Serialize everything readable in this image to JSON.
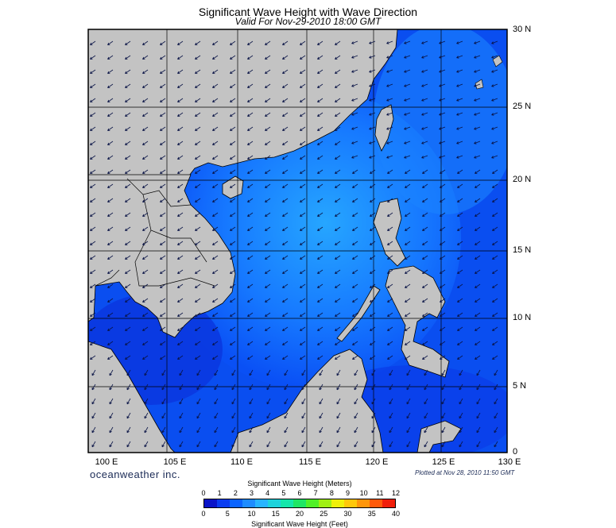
{
  "title": "Significant Wave Height with Wave Direction",
  "subtitle": "Valid For Nov-29-2010 18:00 GMT",
  "latitude_labels": [
    "30 N",
    "25 N",
    "20 N",
    "15 N",
    "10 N",
    "5 N",
    "0"
  ],
  "longitude_labels": [
    "100 E",
    "105 E",
    "110 E",
    "115 E",
    "120 E",
    "125 E",
    "130 E"
  ],
  "brand": "oceanweather inc.",
  "plotted_note": "Plotted at Nov 28, 2010 11:50 GMT",
  "colorbar": {
    "meters_title": "Significant Wave Height (Meters)",
    "feet_title": "Significant Wave Height (Feet)",
    "meters_ticks": [
      "0",
      "1",
      "2",
      "3",
      "4",
      "5",
      "6",
      "7",
      "8",
      "9",
      "10",
      "11",
      "12"
    ],
    "feet_ticks": [
      "0",
      "5",
      "10",
      "15",
      "20",
      "25",
      "30",
      "35",
      "40"
    ],
    "colors": [
      "#0a14c8",
      "#0a3cf0",
      "#0a64ff",
      "#1e8cff",
      "#28b4ff",
      "#1ed2dc",
      "#14e6aa",
      "#1ee664",
      "#50f028",
      "#a0f014",
      "#f0f00a",
      "#ffc80a",
      "#ff960a",
      "#ff5a0a",
      "#f01e0a"
    ]
  },
  "colors": {
    "land": "#c3c3c3",
    "ocean_low": "#0a3cf0",
    "ocean_high": "#1e8cff",
    "arrow": "#0a1446"
  }
}
